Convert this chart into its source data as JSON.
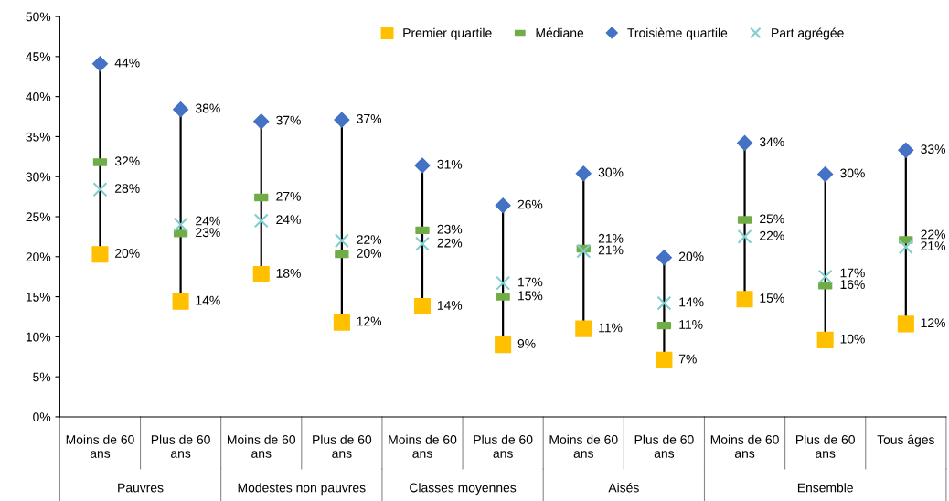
{
  "chart_data": {
    "type": "scatter",
    "categories": [
      "Moins de 60 ans",
      "Plus de 60 ans",
      "Moins de 60 ans",
      "Plus de 60 ans",
      "Moins de 60 ans",
      "Plus de 60 ans",
      "Moins de 60 ans",
      "Plus de 60 ans",
      "Moins de 60 ans",
      "Plus de 60 ans",
      "Tous âges"
    ],
    "annotations": [
      "Pauvres",
      "Modestes non pauvres",
      "Classes moyennes",
      "Aisés",
      "Ensemble"
    ],
    "ylim": [
      0,
      50
    ],
    "yticks": [
      {
        "value": 0,
        "label": "0%"
      },
      {
        "value": 5,
        "label": "5%"
      },
      {
        "value": 10,
        "label": "10%"
      },
      {
        "value": 15,
        "label": "15%"
      },
      {
        "value": 20,
        "label": "20%"
      },
      {
        "value": 25,
        "label": "25%"
      },
      {
        "value": 30,
        "label": "30%"
      },
      {
        "value": 35,
        "label": "35%"
      },
      {
        "value": 40,
        "label": "40%"
      },
      {
        "value": 45,
        "label": "45%"
      },
      {
        "value": 50,
        "label": "50%"
      }
    ],
    "grid": false,
    "legend": "top",
    "series": [
      {
        "name": "Premier quartile",
        "color": "#ffc000",
        "marker": "square",
        "values": [
          20.3,
          14.4,
          17.8,
          11.8,
          13.8,
          9.0,
          11.0,
          7.1,
          14.7,
          9.6,
          11.6
        ],
        "value_labels": [
          "20%",
          "14%",
          "18%",
          "12%",
          "14%",
          "9%",
          "11%",
          "7%",
          "15%",
          "10%",
          "12%"
        ]
      },
      {
        "name": "Médiane",
        "color": "#70ad47",
        "values": [
          31.8,
          22.9,
          27.4,
          20.3,
          23.3,
          15.0,
          21.0,
          11.4,
          24.6,
          16.4,
          22.1
        ],
        "value_labels": [
          "32%",
          "23%",
          "27%",
          "20%",
          "23%",
          "15%",
          "21%",
          "11%",
          "25%",
          "16%",
          "22%"
        ]
      },
      {
        "name": "Troisième quartile",
        "color": "#4472c4",
        "marker": "diamond",
        "values": [
          44.1,
          38.4,
          36.9,
          37.1,
          31.4,
          26.4,
          30.4,
          19.9,
          34.2,
          30.3,
          33.3
        ],
        "value_labels": [
          "44%",
          "38%",
          "37%",
          "37%",
          "31%",
          "26%",
          "30%",
          "20%",
          "34%",
          "30%",
          "33%"
        ]
      },
      {
        "name": "Part agrégée",
        "color": "#7fcfcf",
        "marker": "cross",
        "values": [
          28.4,
          24.0,
          24.5,
          22.0,
          21.6,
          16.7,
          20.7,
          14.2,
          22.5,
          17.5,
          21.2
        ],
        "value_labels": [
          "28%",
          "24%",
          "24%",
          "22%",
          "22%",
          "17%",
          "21%",
          "14%",
          "22%",
          "17%",
          "21%"
        ]
      }
    ]
  }
}
